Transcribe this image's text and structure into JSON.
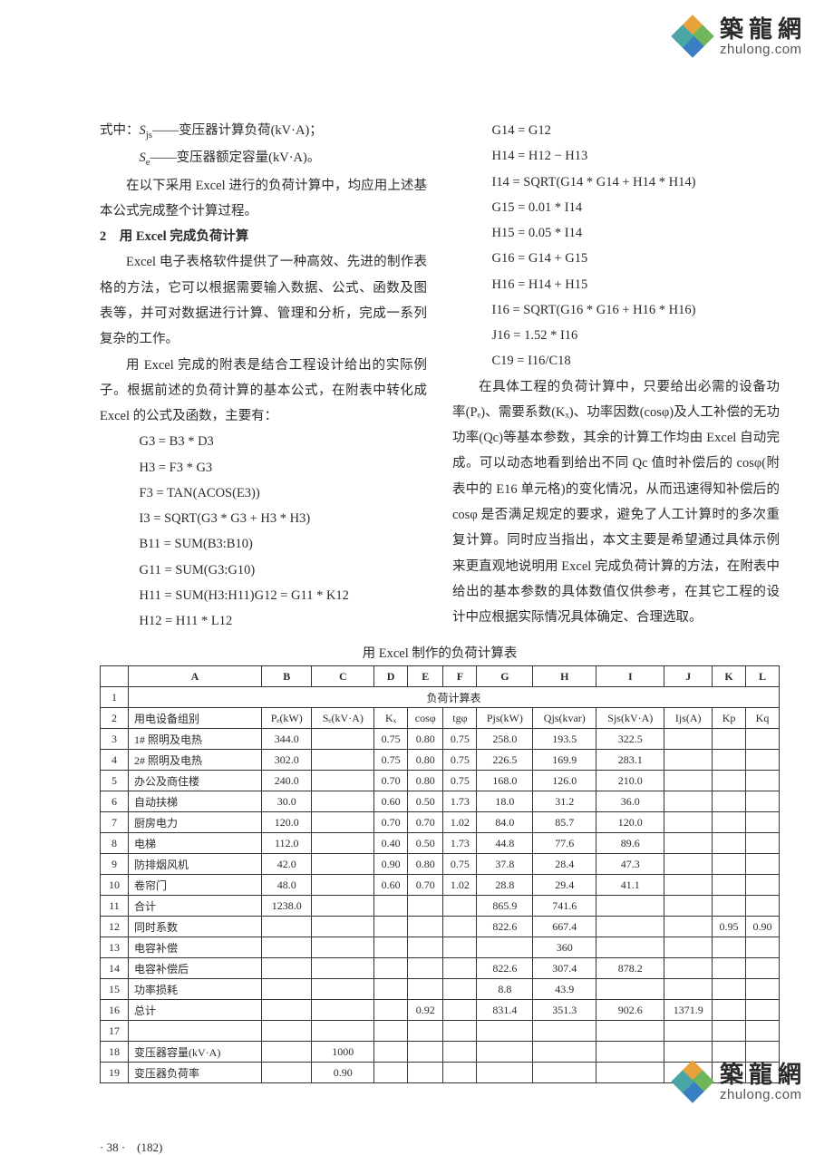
{
  "logo": {
    "cn": "築龍網",
    "en": "zhulong.com"
  },
  "colors": {
    "petal_orange": "#e8a23a",
    "petal_green": "#6fb65a",
    "petal_blue": "#3a7fc4",
    "petal_teal": "#4aa6a6",
    "text": "#2b2b2b",
    "border": "#333333",
    "background": "#ffffff"
  },
  "left": {
    "def1_pre": "式中：",
    "def1_sym": "S",
    "def1_sub": "js",
    "def1_txt": "——变压器计算负荷(kV·A)；",
    "def2_sym": "S",
    "def2_sub": "e",
    "def2_txt": "——变压器额定容量(kV·A)。",
    "p1": "在以下采用 Excel 进行的负荷计算中，均应用上述基本公式完成整个计算过程。",
    "h2": "2　用 Excel 完成负荷计算",
    "p2a": "Excel 电子表格软件提供了一种高效、先进的制作表格的方法，它可以根据需要输入数据、公式、函数及图表等，并可对数据进行计算、管理和分析，完成一系列复杂的工作。",
    "p2b": "用 Excel 完成的附表是结合工程设计给出的实际例子。根据前述的负荷计算的基本公式，在附表中转化成 Excel 的公式及函数，主要有：",
    "f": [
      "G3 = B3 * D3",
      "H3 = F3 * G3",
      "F3 = TAN(ACOS(E3))",
      "I3 = SQRT(G3 * G3 + H3 * H3)",
      "B11 = SUM(B3:B10)",
      "G11 = SUM(G3:G10)",
      "H11 = SUM(H3:H11)G12 = G11 * K12",
      "H12 = H11 * L12"
    ]
  },
  "right": {
    "f": [
      "G14 = G12",
      "H14 = H12 − H13",
      "I14 = SQRT(G14 * G14 + H14 * H14)",
      "G15 = 0.01 * I14",
      "H15 = 0.05 * I14",
      "G16 = G14 + G15",
      "H16 = H14 + H15",
      "I16 = SQRT(G16 * G16 + H16 * H16)",
      "J16 = 1.52 * I16",
      "C19 = I16/C18"
    ],
    "p1": "在具体工程的负荷计算中，只要给出必需的设备功率(Pₑ)、需要系数(Kₓ)、功率因数(cosφ)及人工补偿的无功功率(Qc)等基本参数，其余的计算工作均由 Excel 自动完成。可以动态地看到给出不同 Qc 值时补偿后的 cosφ(附表中的 E16 单元格)的变化情况，从而迅速得知补偿后的 cosφ 是否满足规定的要求，避免了人工计算时的多次重复计算。同时应当指出，本文主要是希望通过具体示例来更直观地说明用 Excel 完成负荷计算的方法，在附表中给出的基本参数的具体数值仅供参考，在其它工程的设计中应根据实际情况具体确定、合理选取。"
  },
  "table": {
    "caption": "用 Excel 制作的负荷计算表",
    "cols": [
      "",
      "A",
      "B",
      "C",
      "D",
      "E",
      "F",
      "G",
      "H",
      "I",
      "J",
      "K",
      "L"
    ],
    "title_row_label": "负荷计算表",
    "header_row": [
      "用电设备组别",
      "Pₑ(kW)",
      "Sₑ(kV·A)",
      "Kₓ",
      "cosφ",
      "tgφ",
      "Pjs(kW)",
      "Qjs(kvar)",
      "Sjs(kV·A)",
      "Ijs(A)",
      "Kp",
      "Kq"
    ],
    "rows": [
      {
        "n": "3",
        "a": "1# 照明及电热",
        "b": "344.0",
        "c": "",
        "d": "0.75",
        "e": "0.80",
        "f": "0.75",
        "g": "258.0",
        "h": "193.5",
        "i": "322.5",
        "j": "",
        "k": "",
        "l": ""
      },
      {
        "n": "4",
        "a": "2# 照明及电热",
        "b": "302.0",
        "c": "",
        "d": "0.75",
        "e": "0.80",
        "f": "0.75",
        "g": "226.5",
        "h": "169.9",
        "i": "283.1",
        "j": "",
        "k": "",
        "l": ""
      },
      {
        "n": "5",
        "a": "办公及商住楼",
        "b": "240.0",
        "c": "",
        "d": "0.70",
        "e": "0.80",
        "f": "0.75",
        "g": "168.0",
        "h": "126.0",
        "i": "210.0",
        "j": "",
        "k": "",
        "l": ""
      },
      {
        "n": "6",
        "a": "自动扶梯",
        "b": "30.0",
        "c": "",
        "d": "0.60",
        "e": "0.50",
        "f": "1.73",
        "g": "18.0",
        "h": "31.2",
        "i": "36.0",
        "j": "",
        "k": "",
        "l": ""
      },
      {
        "n": "7",
        "a": "厨房电力",
        "b": "120.0",
        "c": "",
        "d": "0.70",
        "e": "0.70",
        "f": "1.02",
        "g": "84.0",
        "h": "85.7",
        "i": "120.0",
        "j": "",
        "k": "",
        "l": ""
      },
      {
        "n": "8",
        "a": "电梯",
        "b": "112.0",
        "c": "",
        "d": "0.40",
        "e": "0.50",
        "f": "1.73",
        "g": "44.8",
        "h": "77.6",
        "i": "89.6",
        "j": "",
        "k": "",
        "l": ""
      },
      {
        "n": "9",
        "a": "防排烟风机",
        "b": "42.0",
        "c": "",
        "d": "0.90",
        "e": "0.80",
        "f": "0.75",
        "g": "37.8",
        "h": "28.4",
        "i": "47.3",
        "j": "",
        "k": "",
        "l": ""
      },
      {
        "n": "10",
        "a": "卷帘门",
        "b": "48.0",
        "c": "",
        "d": "0.60",
        "e": "0.70",
        "f": "1.02",
        "g": "28.8",
        "h": "29.4",
        "i": "41.1",
        "j": "",
        "k": "",
        "l": ""
      },
      {
        "n": "11",
        "a": "合计",
        "b": "1238.0",
        "c": "",
        "d": "",
        "e": "",
        "f": "",
        "g": "865.9",
        "h": "741.6",
        "i": "",
        "j": "",
        "k": "",
        "l": ""
      },
      {
        "n": "12",
        "a": "同时系数",
        "b": "",
        "c": "",
        "d": "",
        "e": "",
        "f": "",
        "g": "822.6",
        "h": "667.4",
        "i": "",
        "j": "",
        "k": "0.95",
        "l": "0.90"
      },
      {
        "n": "13",
        "a": "电容补偿",
        "b": "",
        "c": "",
        "d": "",
        "e": "",
        "f": "",
        "g": "",
        "h": "360",
        "i": "",
        "j": "",
        "k": "",
        "l": ""
      },
      {
        "n": "14",
        "a": "电容补偿后",
        "b": "",
        "c": "",
        "d": "",
        "e": "",
        "f": "",
        "g": "822.6",
        "h": "307.4",
        "i": "878.2",
        "j": "",
        "k": "",
        "l": ""
      },
      {
        "n": "15",
        "a": "功率损耗",
        "b": "",
        "c": "",
        "d": "",
        "e": "",
        "f": "",
        "g": "8.8",
        "h": "43.9",
        "i": "",
        "j": "",
        "k": "",
        "l": ""
      },
      {
        "n": "16",
        "a": "总计",
        "b": "",
        "c": "",
        "d": "",
        "e": "0.92",
        "f": "",
        "g": "831.4",
        "h": "351.3",
        "i": "902.6",
        "j": "1371.9",
        "k": "",
        "l": ""
      },
      {
        "n": "17",
        "a": "",
        "b": "",
        "c": "",
        "d": "",
        "e": "",
        "f": "",
        "g": "",
        "h": "",
        "i": "",
        "j": "",
        "k": "",
        "l": ""
      },
      {
        "n": "18",
        "a": "变压器容量(kV·A)",
        "b": "",
        "c": "1000",
        "d": "",
        "e": "",
        "f": "",
        "g": "",
        "h": "",
        "i": "",
        "j": "",
        "k": "",
        "l": ""
      },
      {
        "n": "19",
        "a": "变压器负荷率",
        "b": "",
        "c": "0.90",
        "d": "",
        "e": "",
        "f": "",
        "g": "",
        "h": "",
        "i": "",
        "j": "",
        "k": "",
        "l": ""
      }
    ]
  },
  "page_num": "· 38 ·　(182)"
}
